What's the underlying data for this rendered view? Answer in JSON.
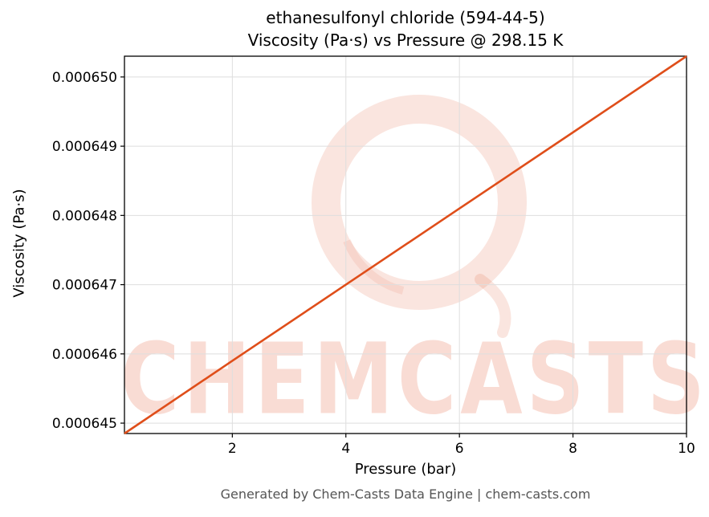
{
  "header": {
    "line1": "ethanesulfonyl chloride (594-44-5)",
    "line2": "Viscosity (Pa·s) vs Pressure @ 298.15 K"
  },
  "watermark": {
    "text": "CHEMCASTS"
  },
  "footer": {
    "text": "Generated by Chem-Casts Data Engine | chem-casts.com"
  },
  "colors": {
    "line": "#df4e1a",
    "watermark": "#e0502a",
    "grid": "#dedede",
    "axis": "#000000",
    "footer_text": "#555555"
  },
  "chart_data": {
    "type": "line",
    "title": "ethanesulfonyl chloride (594-44-5) Viscosity (Pa·s) vs Pressure @ 298.15 K",
    "xlabel": "Pressure (bar)",
    "ylabel": "Viscosity (Pa·s)",
    "xlim": [
      0.1,
      10
    ],
    "ylim": [
      0.00064485,
      0.0006503
    ],
    "xticks": [
      2,
      4,
      6,
      8,
      10
    ],
    "xtick_labels": [
      "2",
      "4",
      "6",
      "8",
      "10"
    ],
    "yticks": [
      0.000645,
      0.000646,
      0.000647,
      0.000648,
      0.000649,
      0.00065
    ],
    "ytick_labels": [
      "0.000645",
      "0.000646",
      "0.000647",
      "0.000648",
      "0.000649",
      "0.000650"
    ],
    "grid": true,
    "legend": false,
    "series": [
      {
        "name": "viscosity-vs-pressure",
        "color": "#df4e1a",
        "x": [
          0.1,
          2,
          4,
          6,
          8,
          10
        ],
        "y": [
          0.00064485,
          0.0006459,
          0.000647,
          0.0006481,
          0.0006492,
          0.0006503
        ]
      }
    ]
  }
}
